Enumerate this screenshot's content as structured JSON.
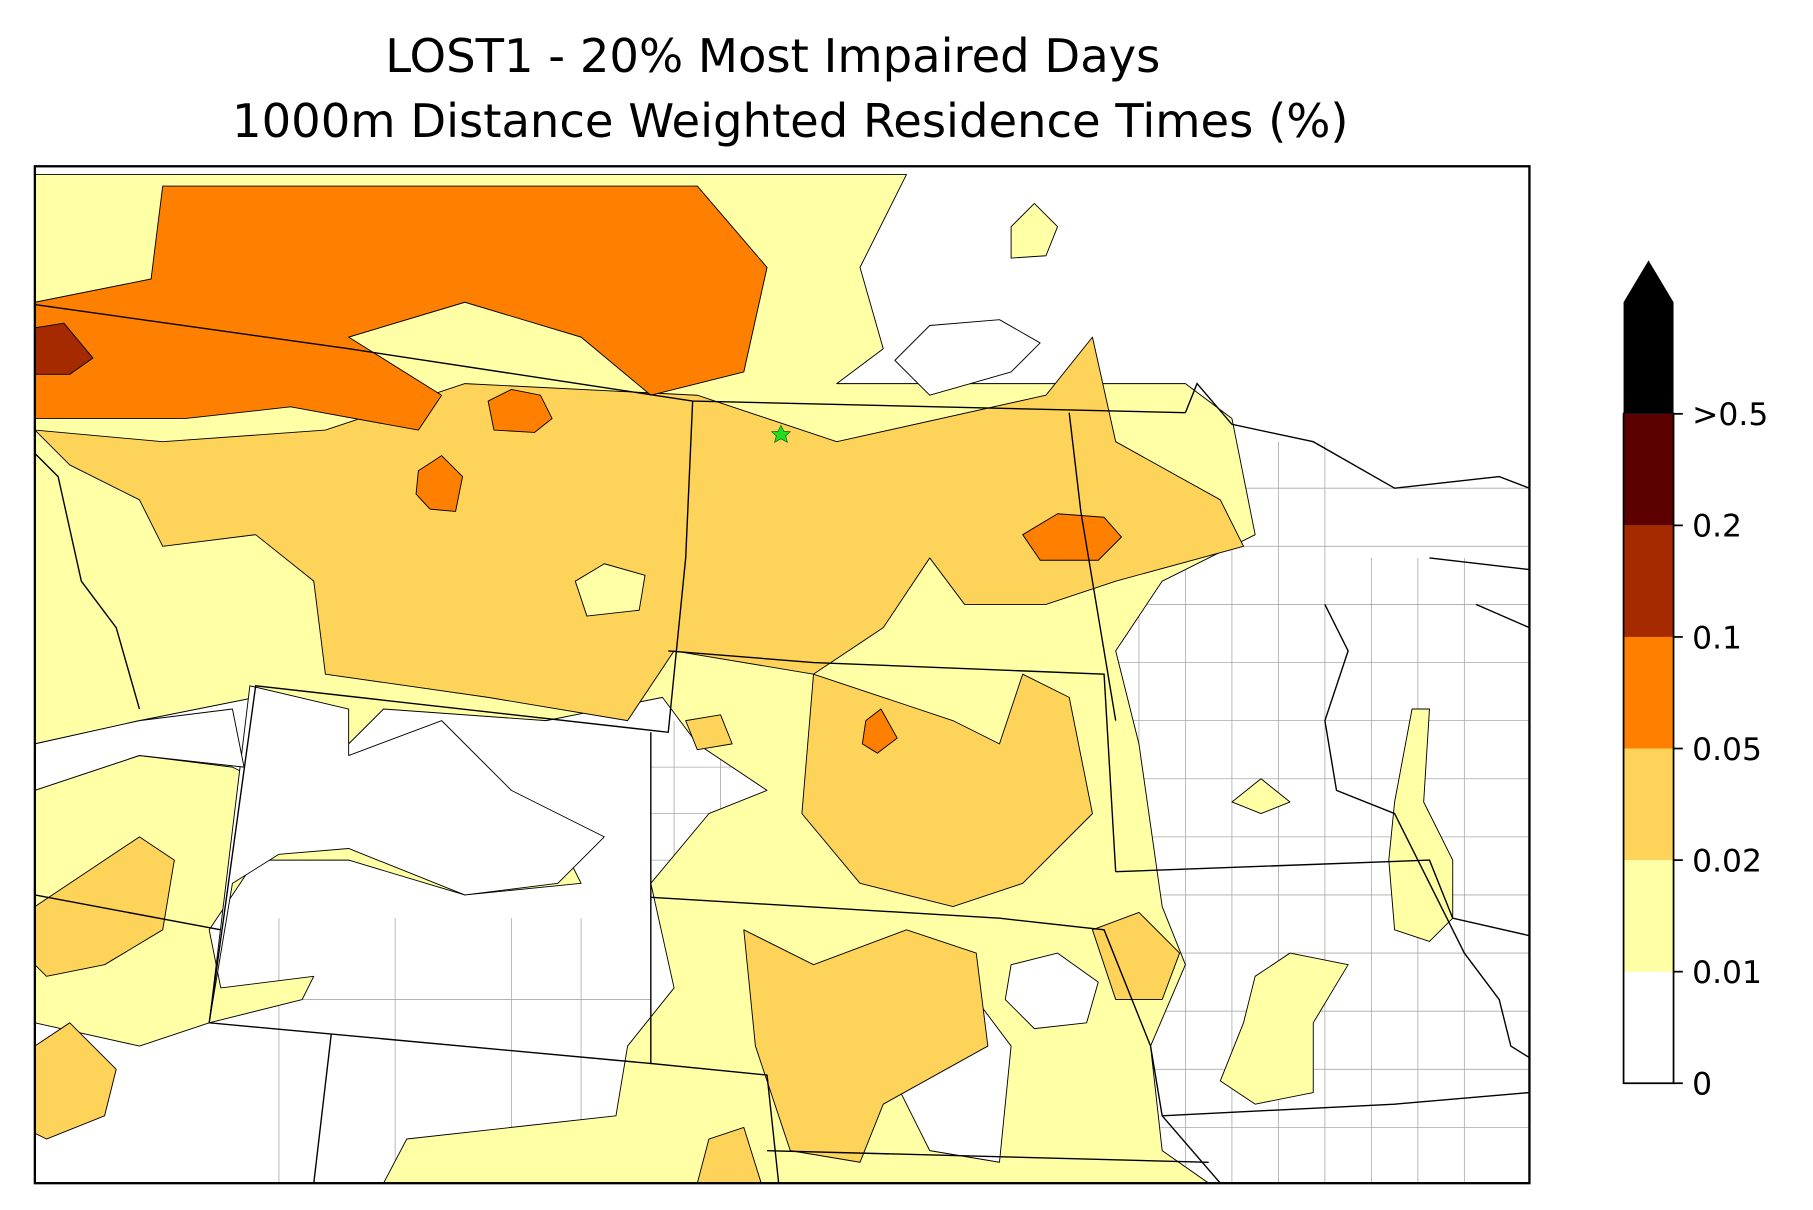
{
  "title": [
    "LOST1 - 20% Most Impaired Days",
    "1000m Distance Weighted Residence Times (%)"
  ],
  "colorbar": {
    "ticks": [
      0,
      0.01,
      0.02,
      0.05,
      0.1,
      0.2,
      {
        "value": 0.5,
        "label": ">0.5"
      }
    ],
    "colors": [
      "#ffffff",
      "#ffffa6",
      "#fed35a",
      "#ff8000",
      "#a52a00",
      "#5c0000",
      "#000000"
    ]
  }
}
